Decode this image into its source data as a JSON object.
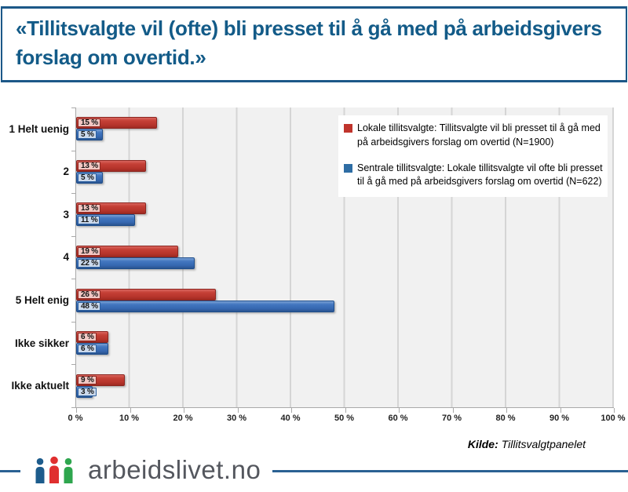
{
  "header": {
    "title": "«Tillitsvalgte vil (ofte) bli presset til å gå med på arbeidsgivers forslag om overtid.»"
  },
  "chart_data": {
    "type": "bar",
    "orientation": "horizontal",
    "title": "",
    "categories": [
      "1 Helt uenig",
      "2",
      "3",
      "4",
      "5 Helt enig",
      "Ikke sikker",
      "Ikke aktuelt"
    ],
    "series": [
      {
        "key": "lokale",
        "name": "Lokale tillitsvalgte",
        "color": "#c0392b",
        "values": [
          15,
          13,
          13,
          19,
          26,
          6,
          9
        ]
      },
      {
        "key": "sentrale",
        "name": "Sentrale tillitsvalgte",
        "color": "#3a6fb5",
        "values": [
          5,
          5,
          11,
          22,
          48,
          6,
          3
        ]
      }
    ],
    "xlim": [
      0,
      100
    ],
    "x_tick_step": 10,
    "x_ticks": [
      "0 %",
      "10 %",
      "20 %",
      "30 %",
      "40 %",
      "50 %",
      "60 %",
      "70 %",
      "80 %",
      "90 %",
      "100 %"
    ],
    "data_label_suffix": " %",
    "grid": true,
    "plot_background": "#f1f1f1",
    "legend_position": "top-right"
  },
  "legend": {
    "items": [
      {
        "color": "#c0342c",
        "label": "Lokale tillitsvalgte:  Tillitsvalgte vil bli presset til å gå med på arbeidsgivers forslag om overtid (N=1900)"
      },
      {
        "color": "#2e6da4",
        "label": "Sentrale tillitsvalgte:  Lokale tillitsvalgte vil ofte bli presset til å gå med på arbeidsgivers forslag om overtid (N=622)"
      }
    ]
  },
  "footer": {
    "source_label": "Kilde:",
    "source_text": "Tillitsvalgtpanelet",
    "logo_text": "arbeidslivet.no",
    "logo_icon": "people-icon",
    "logo_colors": {
      "person1": "#1d5c8c",
      "person2": "#e02f2f",
      "person3": "#2ea64e"
    },
    "line_color": "#2a6193"
  }
}
